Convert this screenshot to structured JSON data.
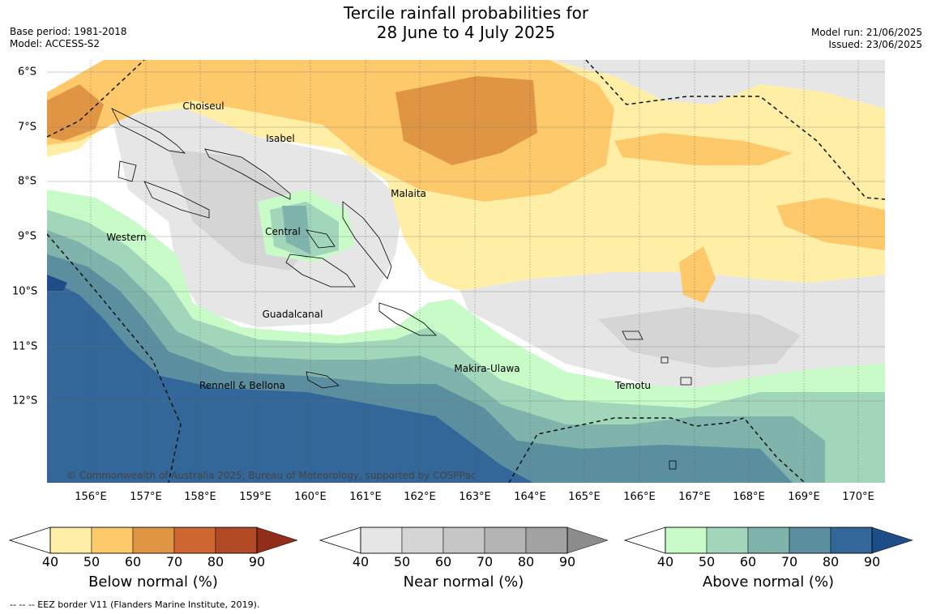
{
  "title_line1": "Tercile rainfall probabilities for",
  "title_line2": "28 June to 4 July 2025",
  "base_period": "Base period: 1981-2018",
  "model": "Model: ACCESS-S2",
  "model_run": "Model run: 21/06/2025",
  "issued": "Issued: 23/06/2025",
  "x_ticks": [
    "156°E",
    "157°E",
    "158°E",
    "159°E",
    "160°E",
    "161°E",
    "162°E",
    "163°E",
    "164°E",
    "165°E",
    "166°E",
    "167°E",
    "168°E",
    "169°E",
    "170°E"
  ],
  "y_ticks": [
    "6°S",
    "7°S",
    "8°S",
    "9°S",
    "10°S",
    "11°S",
    "12°S"
  ],
  "regions": [
    "Choiseul",
    "Isabel",
    "Malaita",
    "Central",
    "Western",
    "Guadalcanal",
    "Makira-Ulawa",
    "Rennell & Bellona",
    "Temotu"
  ],
  "copyright": "© Commonwealth of Australia 2025, Bureau of Meteorology, supported by COSPPac",
  "colorbars": [
    {
      "title": "Below normal (%)",
      "labels": [
        "40",
        "50",
        "60",
        "70",
        "80",
        "90"
      ],
      "colors": [
        "#ffeea6",
        "#fdc96a",
        "#e09545",
        "#cf6530",
        "#b14a25",
        "#922d1c"
      ]
    },
    {
      "title": "Near normal (%)",
      "labels": [
        "40",
        "50",
        "60",
        "70",
        "80",
        "90"
      ],
      "colors": [
        "#e6e6e6",
        "#d5d5d5",
        "#c6c6c6",
        "#b4b4b4",
        "#a2a2a2",
        "#8c8c8c"
      ]
    },
    {
      "title": "Above normal (%)",
      "labels": [
        "40",
        "50",
        "60",
        "70",
        "80",
        "90"
      ],
      "colors": [
        "#c8fbc8",
        "#a2d6bb",
        "#80b3ab",
        "#5b8fa0",
        "#336799",
        "#1e4c86"
      ]
    }
  ],
  "footnote": "--  --  -- EEZ border V11 (Flanders Marine Institute, 2019)."
}
